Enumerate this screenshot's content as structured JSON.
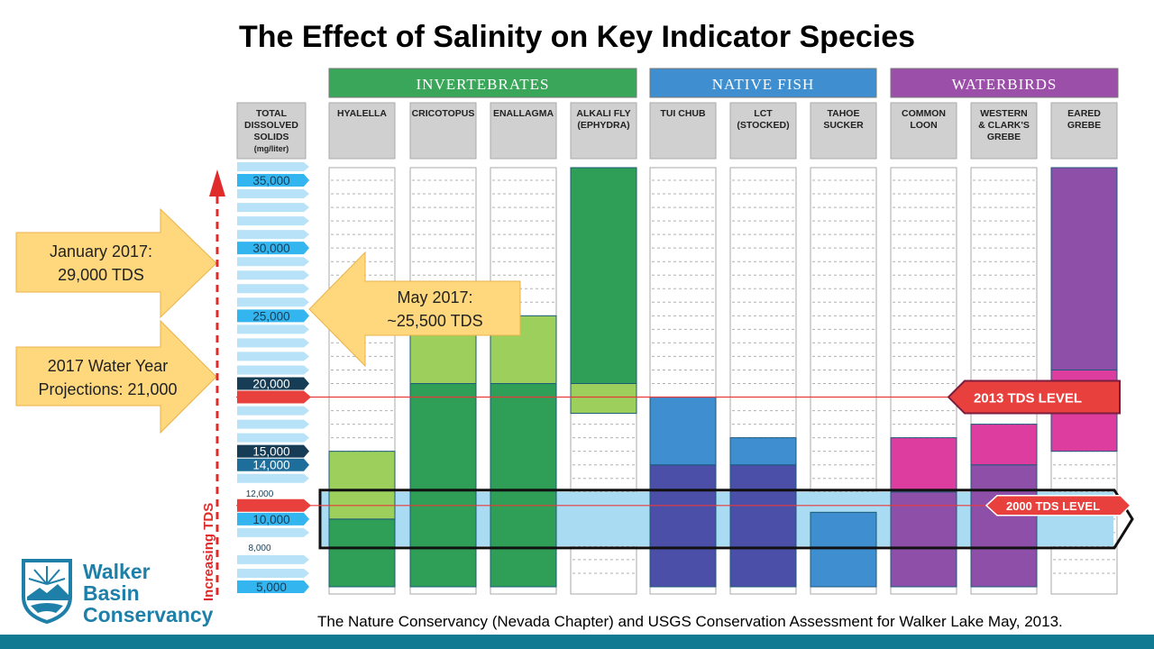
{
  "title": "The Effect of Salinity on Key Indicator Species",
  "source": "The Nature Conservancy (Nevada Chapter) and USGS Conservation Assessment for Walker Lake May, 2013.",
  "logo": {
    "lines": [
      "Walker",
      "Basin",
      "Conservancy"
    ]
  },
  "callouts": {
    "jan2017": {
      "line1": "January 2017:",
      "line2": "29,000 TDS"
    },
    "may2017": {
      "line1": "May 2017:",
      "line2": "~25,500 TDS"
    },
    "water_year": {
      "line1": "2017 Water Year",
      "line2": "Projections: 21,000"
    }
  },
  "chart_data": {
    "type": "bar",
    "title": "The Effect of Salinity on Key Indicator Species",
    "axis": {
      "header": [
        "TOTAL",
        "DISSOLVED",
        "SOLIDS",
        "(mg/liter)"
      ],
      "ylim": [
        4000,
        36000
      ],
      "vertical_label": "Increasing TDS",
      "ticks": [
        {
          "value": 35000,
          "label": "35,000",
          "style": "major"
        },
        {
          "value": 30000,
          "label": "30,000",
          "style": "major"
        },
        {
          "value": 25000,
          "label": "25,000",
          "style": "major"
        },
        {
          "value": 20000,
          "label": "20,000",
          "style": "dark"
        },
        {
          "value": 15000,
          "label": "15,000",
          "style": "dark"
        },
        {
          "value": 14000,
          "label": "14,000",
          "style": "mid"
        },
        {
          "value": 12000,
          "label": "12,000",
          "style": "minor"
        },
        {
          "value": 10000,
          "label": "10,000",
          "style": "major"
        },
        {
          "value": 8000,
          "label": "8,000",
          "style": "minor"
        },
        {
          "value": 5000,
          "label": "5,000",
          "style": "major"
        }
      ]
    },
    "groups": [
      {
        "name": "INVERTEBRATES",
        "color": "#3aa65a"
      },
      {
        "name": "NATIVE FISH",
        "color": "#3f8fd0"
      },
      {
        "name": "WATERBIRDS",
        "color": "#9b4fa8"
      }
    ],
    "species": [
      {
        "group": 0,
        "label": [
          "HYALELLA"
        ],
        "segments": [
          {
            "from": 5000,
            "to": 10000,
            "color": "#2f9e57"
          },
          {
            "from": 10000,
            "to": 15000,
            "color": "#9ccf5c"
          }
        ]
      },
      {
        "group": 0,
        "label": [
          "CRICOTOPUS"
        ],
        "segments": [
          {
            "from": 5000,
            "to": 20000,
            "color": "#2f9e57"
          },
          {
            "from": 20000,
            "to": 25000,
            "color": "#9ccf5c"
          }
        ]
      },
      {
        "group": 0,
        "label": [
          "ENALLAGMA"
        ],
        "segments": [
          {
            "from": 5000,
            "to": 20000,
            "color": "#2f9e57"
          },
          {
            "from": 20000,
            "to": 25000,
            "color": "#9ccf5c"
          }
        ]
      },
      {
        "group": 0,
        "label": [
          "ALKALI FLY",
          "(EPHYDRA)"
        ],
        "segments": [
          {
            "from": 17800,
            "to": 20000,
            "color": "#9ccf5c"
          },
          {
            "from": 20000,
            "to": 36000,
            "color": "#2f9e57"
          }
        ]
      },
      {
        "group": 1,
        "label": [
          "TUI CHUB"
        ],
        "segments": [
          {
            "from": 5000,
            "to": 14000,
            "color": "#4c4fa8"
          },
          {
            "from": 14000,
            "to": 19000,
            "color": "#3f8fd0"
          }
        ]
      },
      {
        "group": 1,
        "label": [
          "LCT",
          "(STOCKED)"
        ],
        "segments": [
          {
            "from": 5000,
            "to": 14000,
            "color": "#4c4fa8"
          },
          {
            "from": 14000,
            "to": 16000,
            "color": "#3f8fd0"
          }
        ]
      },
      {
        "group": 1,
        "label": [
          "TAHOE",
          "SUCKER"
        ],
        "segments": [
          {
            "from": 5000,
            "to": 10500,
            "color": "#3f8fd0"
          }
        ]
      },
      {
        "group": 2,
        "label": [
          "COMMON",
          "LOON"
        ],
        "segments": [
          {
            "from": 5000,
            "to": 12000,
            "color": "#8e4fa8"
          },
          {
            "from": 12000,
            "to": 16000,
            "color": "#dd3d9f"
          }
        ]
      },
      {
        "group": 2,
        "label": [
          "WESTERN",
          "& CLARK'S",
          "GREBE"
        ],
        "segments": [
          {
            "from": 5000,
            "to": 14000,
            "color": "#8e4fa8"
          },
          {
            "from": 14000,
            "to": 17000,
            "color": "#dd3d9f"
          }
        ]
      },
      {
        "group": 2,
        "label": [
          "EARED",
          "GREBE"
        ],
        "segments": [
          {
            "from": 15000,
            "to": 21000,
            "color": "#dd3d9f"
          },
          {
            "from": 21000,
            "to": 36000,
            "color": "#8e4fa8"
          }
        ]
      }
    ],
    "levels": [
      {
        "label": "2013 TDS LEVEL",
        "value": 19000
      },
      {
        "label": "2000 TDS LEVEL",
        "value": 11000
      }
    ],
    "band_2000": {
      "from": 8000,
      "to": 12000
    }
  }
}
